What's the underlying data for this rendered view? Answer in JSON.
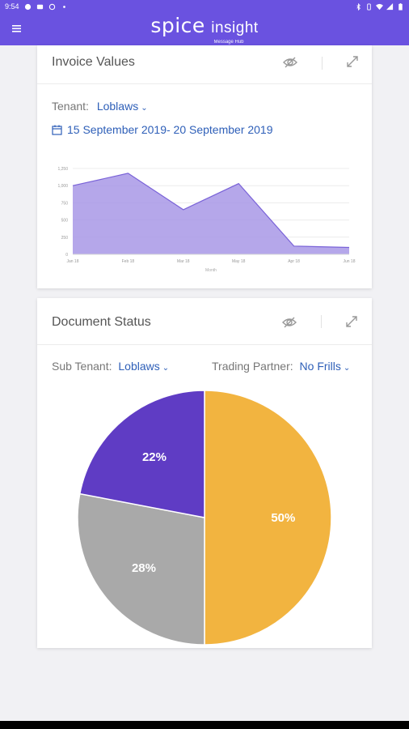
{
  "status_bar": {
    "time": "9:54"
  },
  "app": {
    "logo_text": "spice",
    "logo_text2": "insight",
    "logo_sub": "Message Hub"
  },
  "invoice_card": {
    "title": "Invoice Values",
    "tenant_label": "Tenant:",
    "tenant_value": "Loblaws",
    "date_range": "15 September 2019- 20 September 2019"
  },
  "document_card": {
    "title": "Document Status",
    "sub_tenant_label": "Sub Tenant:",
    "sub_tenant_value": "Loblaws",
    "partner_label": "Trading Partner:",
    "partner_value": "No Frills"
  },
  "colors": {
    "accent": "#6a52e0",
    "link": "#2e5fb8",
    "area_fill": "#a898e6",
    "area_line": "#7a63d8",
    "pie_orange": "#f2b440",
    "pie_gray": "#a9a9a9",
    "pie_purple": "#5f3cc4"
  },
  "chart_data": [
    {
      "type": "area",
      "categories": [
        "Jan 18",
        "Feb 18",
        "Mar 18",
        "May 18",
        "Apr 18",
        "Jun 18"
      ],
      "values": [
        1000,
        1180,
        650,
        1030,
        120,
        100
      ],
      "ylim": [
        0,
        1250
      ],
      "yticks": [
        0,
        250,
        500,
        750,
        "1,000",
        "1,250"
      ],
      "xlabel": "Month",
      "ylabel": "",
      "grid": true
    },
    {
      "type": "pie",
      "slices": [
        {
          "label": "50%",
          "value": 50,
          "color": "#f2b440"
        },
        {
          "label": "28%",
          "value": 28,
          "color": "#a9a9a9"
        },
        {
          "label": "22%",
          "value": 22,
          "color": "#5f3cc4"
        }
      ]
    }
  ]
}
